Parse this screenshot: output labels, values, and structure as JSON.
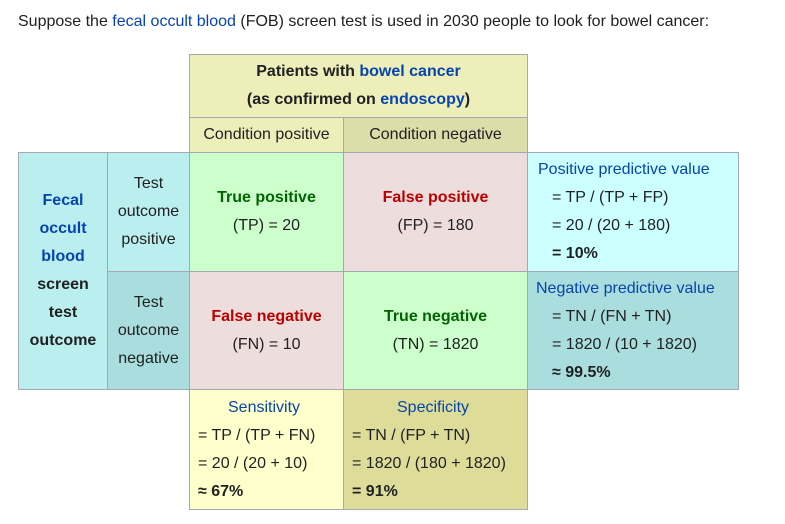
{
  "intro": {
    "prefix": "Suppose the ",
    "link": "fecal occult blood",
    "suffix": " (FOB) screen test is used in 2030 people to look for bowel cancer:"
  },
  "header": {
    "line1_prefix": "Patients with ",
    "line1_link": "bowel cancer",
    "line2_prefix": "(as confirmed on ",
    "line2_link": "endoscopy",
    "line2_suffix": ")"
  },
  "columns": {
    "positive": "Condition positive",
    "negative": "Condition negative"
  },
  "row_header": {
    "link_lines": [
      "Fecal",
      "occult",
      "blood"
    ],
    "text_lines": [
      "screen",
      "test",
      "outcome"
    ]
  },
  "rows": {
    "positive": [
      "Test",
      "outcome",
      "positive"
    ],
    "negative": [
      "Test",
      "outcome",
      "negative"
    ]
  },
  "cells": {
    "tp": {
      "title": "True positive",
      "value": "(TP) = 20"
    },
    "fp": {
      "title": "False positive",
      "value": "(FP) = 180"
    },
    "fn": {
      "title": "False negative",
      "value": "(FN) = 10"
    },
    "tn": {
      "title": "True negative",
      "value": "(TN) = 1820"
    }
  },
  "ppv": {
    "title": "Positive predictive value",
    "formula": "= TP / (TP + FP)",
    "calc": "= 20 / (20 + 180)",
    "result": "= 10%"
  },
  "npv": {
    "title": "Negative predictive value",
    "formula": "= TN / (FN + TN)",
    "calc": "= 1820 / (10 + 1820)",
    "result": "≈ 99.5%"
  },
  "sensitivity": {
    "title": "Sensitivity",
    "formula": "= TP / (TP + FN)",
    "calc": "= 20 / (20 + 10)",
    "result": "≈ 67%"
  },
  "specificity": {
    "title": "Specificity",
    "formula": "= TN / (FP + TN)",
    "calc": "= 1820 / (180 + 1820)",
    "result": "= 91%"
  },
  "colors": {
    "header_bg": "#eeeebb",
    "cond_neg_bg": "#ddddaa",
    "row_header_bg": "#bbeeee",
    "row_neg_bg": "#aadddd",
    "tp_bg": "#ccffcc",
    "fp_bg": "#eedddd",
    "ppv_bg": "#ccffff",
    "npv_bg": "#aadddd",
    "sens_bg": "#ffffcc",
    "spec_bg": "#dddd99",
    "border": "#a2a9b1",
    "link": "#0645ad"
  }
}
